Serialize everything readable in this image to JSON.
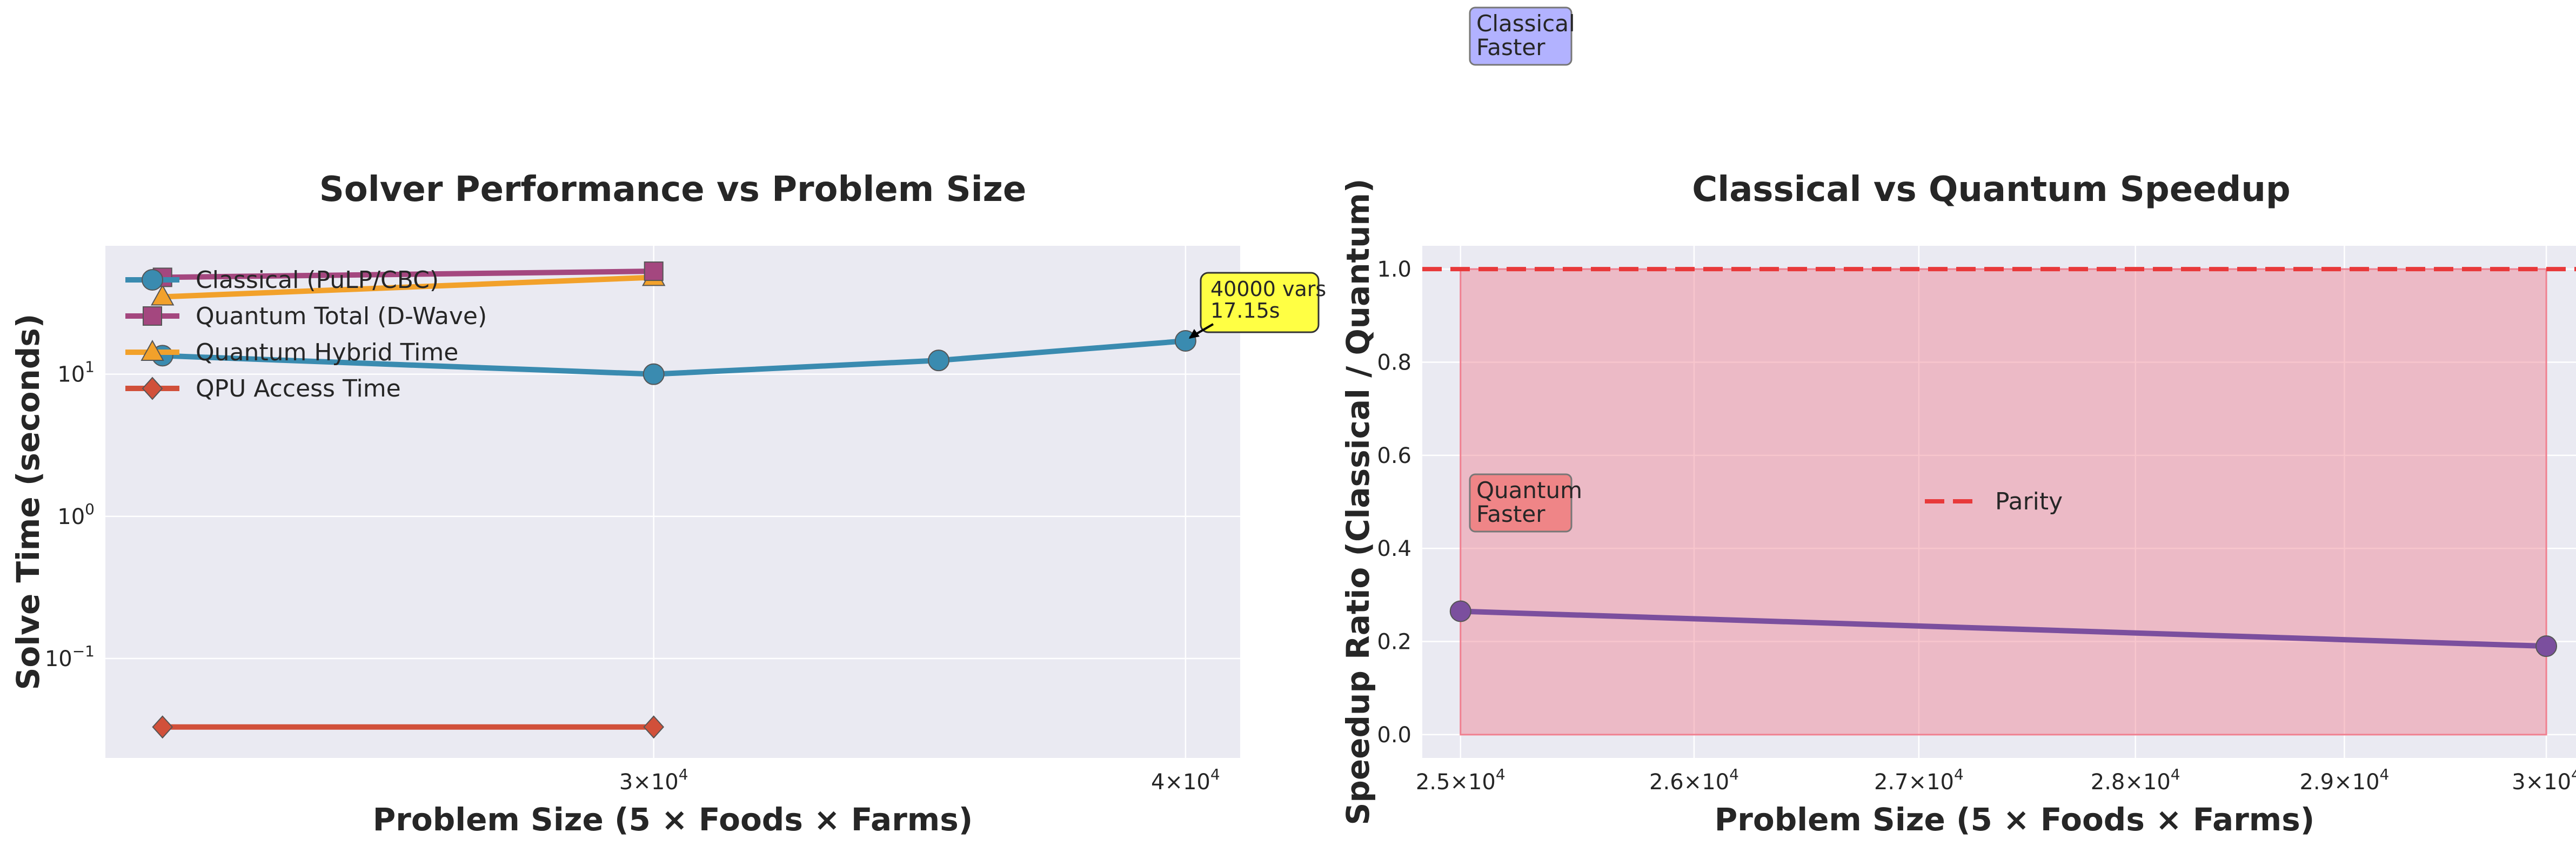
{
  "chart_data": [
    {
      "type": "line",
      "title": "Solver Performance vs Problem Size",
      "xlabel": "Problem Size (5 × Foods × Farms)",
      "ylabel": "Solve Time (seconds)",
      "xscale": "log",
      "yscale": "log",
      "xlim": [
        22300,
        41200
      ],
      "ylim": [
        0.02,
        80
      ],
      "grid": true,
      "legend_loc": "upper-left",
      "xticks": [
        {
          "value": 30000,
          "mantissa": "3",
          "base": "×10",
          "exp": "4"
        },
        {
          "value": 40000,
          "mantissa": "4",
          "base": "×10",
          "exp": "4"
        }
      ],
      "yticks": [
        {
          "value": 0.1,
          "base": "10",
          "exp": "−1"
        },
        {
          "value": 1,
          "base": "10",
          "exp": "0"
        },
        {
          "value": 10,
          "base": "10",
          "exp": "1"
        }
      ],
      "series": [
        {
          "name": "Classical (PuLP/CBC)",
          "color": "#3a8bb0",
          "marker": "circle",
          "x": [
            23000,
            30000,
            35000,
            40000
          ],
          "y": [
            13.5,
            10.0,
            12.5,
            17.15
          ]
        },
        {
          "name": "Quantum Total (D-Wave)",
          "color": "#a4477f",
          "marker": "square",
          "x": [
            23000,
            30000
          ],
          "y": [
            48.0,
            53.0
          ]
        },
        {
          "name": "Quantum Hybrid Time",
          "color": "#f2a12b",
          "marker": "triangle",
          "x": [
            23000,
            30000
          ],
          "y": [
            35.0,
            48.0
          ]
        },
        {
          "name": "QPU Access Time",
          "color": "#d1503a",
          "marker": "diamond",
          "x": [
            23000,
            30000
          ],
          "y": [
            0.033,
            0.033
          ]
        }
      ],
      "annotation": {
        "lines": [
          "40000 vars",
          "17.15s"
        ],
        "x": 40000,
        "y": 17.15,
        "bg": "#ffff44"
      }
    },
    {
      "type": "line",
      "title": "Classical vs Quantum Speedup",
      "xlabel": "Problem Size (5 × Foods × Farms)",
      "ylabel": "Speedup Ratio (Classical / Quantum)",
      "xscale": "log",
      "xlim": [
        24840,
        30150
      ],
      "ylim": [
        -0.05,
        1.05
      ],
      "grid": true,
      "legend_loc": "center",
      "xticks": [
        {
          "value": 25000,
          "mantissa": "2.5",
          "base": "×10",
          "exp": "4"
        },
        {
          "value": 26000,
          "mantissa": "2.6",
          "base": "×10",
          "exp": "4"
        },
        {
          "value": 27000,
          "mantissa": "2.7",
          "base": "×10",
          "exp": "4"
        },
        {
          "value": 28000,
          "mantissa": "2.8",
          "base": "×10",
          "exp": "4"
        },
        {
          "value": 29000,
          "mantissa": "2.9",
          "base": "×10",
          "exp": "4"
        },
        {
          "value": 30000,
          "mantissa": "3",
          "base": "×10",
          "exp": "4"
        }
      ],
      "yticks": [
        "0.0",
        "0.2",
        "0.4",
        "0.6",
        "0.8",
        "1.0"
      ],
      "series": [
        {
          "color": "#7b4f9e",
          "marker": "circle",
          "x": [
            25000,
            30000
          ],
          "y": [
            0.265,
            0.19
          ]
        }
      ],
      "reference_line": {
        "name": "Parity",
        "y": 1.0,
        "color": "#e8393a",
        "style": "dashed"
      },
      "fill_region": {
        "x": [
          25000,
          30000
        ],
        "y": [
          0,
          1.0
        ],
        "color": "#f08090"
      },
      "region_labels": [
        {
          "lines": [
            "Quantum",
            "Faster"
          ],
          "bg": "#f08080"
        },
        {
          "lines": [
            "Classical",
            "Faster"
          ],
          "bg": "#aaaaff"
        }
      ]
    }
  ]
}
